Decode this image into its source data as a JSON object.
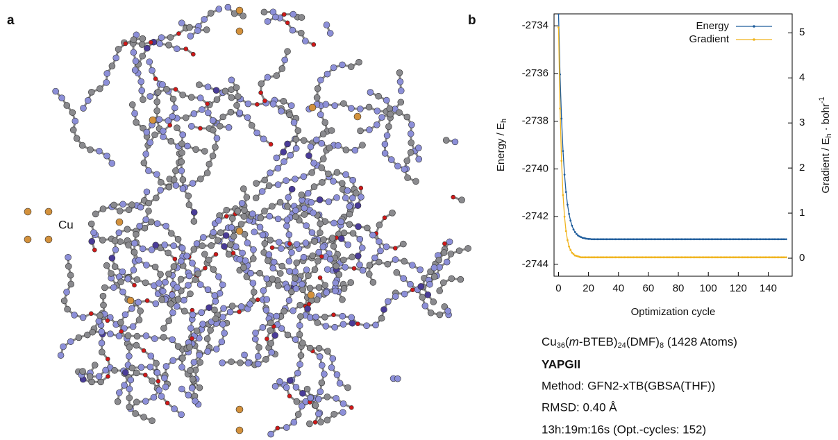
{
  "panel_labels": [
    "a",
    "b"
  ],
  "structure": {
    "atom_label": "Cu"
  },
  "chart_data": {
    "type": "line",
    "x_label": "Optimization cycle",
    "y_label": [
      "Energy / E",
      "h"
    ],
    "y2_label": [
      "Gradient / E",
      "h",
      " · bohr",
      "-1"
    ],
    "x": [
      0,
      1,
      2,
      3,
      4,
      5,
      6,
      7,
      8,
      9,
      10,
      11,
      12,
      13,
      14,
      15,
      16,
      17,
      18,
      19,
      20,
      21,
      22,
      23,
      24,
      25,
      26,
      27,
      28,
      29,
      30,
      31,
      32,
      33,
      34,
      35,
      36,
      37,
      38,
      39,
      40,
      41,
      42,
      43,
      44,
      45,
      46,
      47,
      48,
      49,
      50,
      51,
      52,
      53,
      54,
      55,
      56,
      57,
      58,
      59,
      60,
      61,
      62,
      63,
      64,
      65,
      66,
      67,
      68,
      69,
      70,
      71,
      72,
      73,
      74,
      75,
      76,
      77,
      78,
      79,
      80,
      81,
      82,
      83,
      84,
      85,
      86,
      87,
      88,
      89,
      90,
      91,
      92,
      93,
      94,
      95,
      96,
      97,
      98,
      99,
      100,
      101,
      102,
      103,
      104,
      105,
      106,
      107,
      108,
      109,
      110,
      111,
      112,
      113,
      114,
      115,
      116,
      117,
      118,
      119,
      120,
      121,
      122,
      123,
      124,
      125,
      126,
      127,
      128,
      129,
      130,
      131,
      132,
      133,
      134,
      135,
      136,
      137,
      138,
      139,
      140,
      141,
      142,
      143,
      144,
      145,
      146,
      147,
      148,
      149,
      150,
      151,
      152
    ],
    "series": [
      {
        "name": "Energy",
        "color": "#1f5d9c",
        "values": [
          -2733.5,
          -2736.04,
          -2737.89,
          -2739.25,
          -2740.24,
          -2740.97,
          -2741.5,
          -2741.89,
          -2742.17,
          -2742.38,
          -2742.54,
          -2742.65,
          -2742.73,
          -2742.79,
          -2742.83,
          -2742.86,
          -2742.89,
          -2742.9,
          -2742.92,
          -2742.93,
          -2742.94,
          -2742.94,
          -2742.95,
          -2742.95,
          -2742.95,
          -2742.95,
          -2742.95,
          -2742.95,
          -2742.95,
          -2742.95,
          -2742.95,
          -2742.95,
          -2742.95,
          -2742.95,
          -2742.95,
          -2742.95,
          -2742.95,
          -2742.95,
          -2742.95,
          -2742.95,
          -2742.95,
          -2742.95,
          -2742.95,
          -2742.95,
          -2742.95,
          -2742.95,
          -2742.95,
          -2742.95,
          -2742.95,
          -2742.95,
          -2742.95,
          -2742.95,
          -2742.95,
          -2742.95,
          -2742.95,
          -2742.95,
          -2742.95,
          -2742.95,
          -2742.95,
          -2742.95,
          -2742.95,
          -2742.95,
          -2742.95,
          -2742.95,
          -2742.95,
          -2742.95,
          -2742.95,
          -2742.95,
          -2742.95,
          -2742.95,
          -2742.95,
          -2742.95,
          -2742.95,
          -2742.95,
          -2742.95,
          -2742.95,
          -2742.95,
          -2742.95,
          -2742.95,
          -2742.95,
          -2742.95,
          -2742.95,
          -2742.95,
          -2742.95,
          -2742.95,
          -2742.95,
          -2742.95,
          -2742.95,
          -2742.95,
          -2742.95,
          -2742.95,
          -2742.95,
          -2742.95,
          -2742.95,
          -2742.95,
          -2742.95,
          -2742.95,
          -2742.95,
          -2742.95,
          -2742.95,
          -2742.95,
          -2742.95,
          -2742.95,
          -2742.95,
          -2742.95,
          -2742.95,
          -2742.95,
          -2742.95,
          -2742.95,
          -2742.95,
          -2742.95,
          -2742.95,
          -2742.95,
          -2742.95,
          -2742.95,
          -2742.95,
          -2742.95,
          -2742.95,
          -2742.95,
          -2742.95,
          -2742.95,
          -2742.95,
          -2742.95,
          -2742.95,
          -2742.95,
          -2742.95,
          -2742.95,
          -2742.95,
          -2742.95,
          -2742.95,
          -2742.95,
          -2742.95,
          -2742.95,
          -2742.95,
          -2742.95,
          -2742.95,
          -2742.95,
          -2742.95,
          -2742.95,
          -2742.95,
          -2742.95,
          -2742.95,
          -2742.95,
          -2742.95,
          -2742.95,
          -2742.95,
          -2742.95,
          -2742.95,
          -2742.95,
          -2742.95,
          -2742.95,
          -2742.95,
          -2742.95
        ]
      },
      {
        "name": "Gradient",
        "color": "#f0b41e",
        "axis": "y2",
        "values": [
          5.12,
          3.32,
          2.16,
          1.4,
          0.92,
          0.6,
          0.4,
          0.26,
          0.18,
          0.12,
          0.09,
          0.06,
          0.05,
          0.04,
          0.03,
          0.02,
          0.02,
          0.02,
          0.02,
          0.02,
          0.02,
          0.02,
          0.02,
          0.02,
          0.02,
          0.02,
          0.02,
          0.02,
          0.02,
          0.02,
          0.02,
          0.02,
          0.02,
          0.02,
          0.02,
          0.02,
          0.02,
          0.02,
          0.02,
          0.02,
          0.02,
          0.02,
          0.02,
          0.02,
          0.02,
          0.02,
          0.02,
          0.02,
          0.02,
          0.02,
          0.02,
          0.02,
          0.02,
          0.02,
          0.02,
          0.02,
          0.02,
          0.02,
          0.02,
          0.02,
          0.02,
          0.02,
          0.02,
          0.02,
          0.02,
          0.02,
          0.02,
          0.02,
          0.02,
          0.02,
          0.02,
          0.02,
          0.02,
          0.02,
          0.02,
          0.02,
          0.02,
          0.02,
          0.02,
          0.02,
          0.02,
          0.02,
          0.02,
          0.02,
          0.02,
          0.02,
          0.02,
          0.02,
          0.02,
          0.02,
          0.02,
          0.02,
          0.02,
          0.02,
          0.02,
          0.02,
          0.02,
          0.02,
          0.02,
          0.02,
          0.02,
          0.02,
          0.02,
          0.02,
          0.02,
          0.02,
          0.02,
          0.02,
          0.02,
          0.02,
          0.02,
          0.02,
          0.02,
          0.02,
          0.02,
          0.02,
          0.02,
          0.02,
          0.02,
          0.02,
          0.02,
          0.02,
          0.02,
          0.02,
          0.02,
          0.02,
          0.02,
          0.02,
          0.02,
          0.02,
          0.02,
          0.02,
          0.02,
          0.02,
          0.02,
          0.02,
          0.02,
          0.02,
          0.02,
          0.02,
          0.02,
          0.02,
          0.02,
          0.02,
          0.02,
          0.02,
          0.02,
          0.02,
          0.02,
          0.02,
          0.02,
          0.02,
          0.02
        ]
      }
    ],
    "xlim": [
      -3,
      156
    ],
    "xticks": [
      0,
      20,
      40,
      60,
      80,
      100,
      120,
      140
    ],
    "ylim": [
      -2744.5,
      -2733.5
    ],
    "yticks": [
      -2744,
      -2742,
      -2740,
      -2738,
      -2736,
      -2734
    ],
    "y2lim": [
      -0.4,
      5.42
    ],
    "y2ticks": [
      0,
      1,
      2,
      3,
      4,
      5
    ],
    "legend": "top-right"
  },
  "caption": {
    "formula": [
      "Cu",
      "36",
      "(",
      "m",
      "-BTEB)",
      "24",
      "(DMF)",
      "8",
      " (1428 Atoms)"
    ],
    "lines": [
      "YAPGII",
      "Method: GFN2-xTB(GBSA(THF))",
      "RMSD: 0.40 Å",
      "13h:19m:16s (Opt.-cycles: 152)"
    ]
  }
}
